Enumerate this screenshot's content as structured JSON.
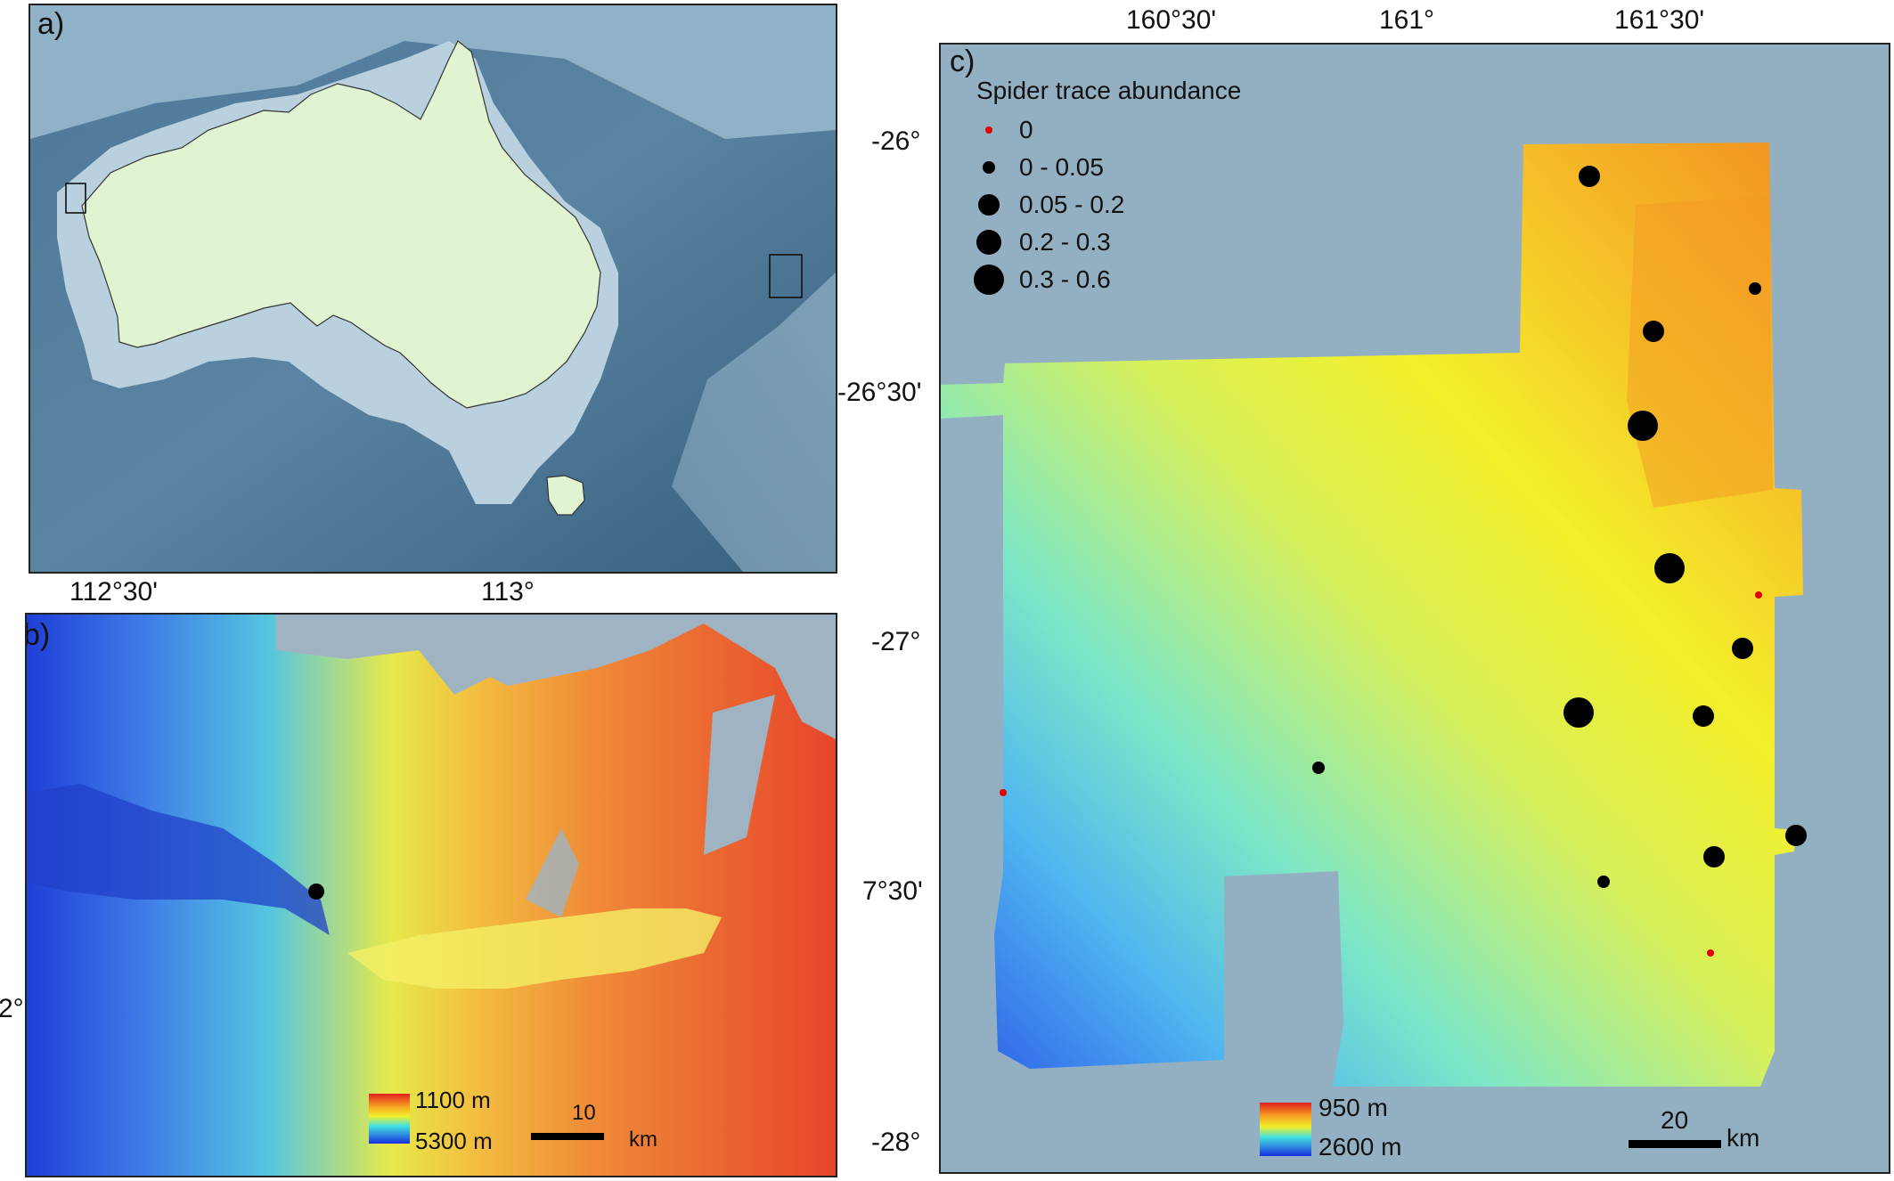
{
  "panel_a": {
    "label": "a)",
    "lon_ticks": [
      "112°30'",
      "113°"
    ]
  },
  "panel_b": {
    "label": "b)",
    "lat_tick_partial": "2°",
    "legend": {
      "top": "1100 m",
      "bottom": "5300 m"
    },
    "scalebar": {
      "value": "10",
      "unit": "km"
    },
    "sites": [
      {
        "abundance_class": "0.05 - 0.2"
      }
    ]
  },
  "panel_c": {
    "label": "c)",
    "lon_ticks": [
      "160°30'",
      "161°",
      "161°30'"
    ],
    "lat_ticks": [
      "-26°",
      "-26°30'",
      "-27°",
      "7°30'",
      "-28°"
    ],
    "legend_title": "Spider trace abundance",
    "legend_items": [
      "0",
      "0 - 0.05",
      "0.05 - 0.2",
      "0.2 - 0.3",
      "0.3 - 0.6"
    ],
    "depth_legend": {
      "top": "950 m",
      "bottom": "2600 m"
    },
    "scalebar": {
      "value": "20",
      "unit": "km"
    },
    "sites": [
      {
        "abundance_class": "0.05 - 0.2"
      },
      {
        "abundance_class": "0 - 0.05"
      },
      {
        "abundance_class": "0.05 - 0.2"
      },
      {
        "abundance_class": "0.3 - 0.6"
      },
      {
        "abundance_class": "0.3 - 0.6"
      },
      {
        "abundance_class": "0.05 - 0.2"
      },
      {
        "abundance_class": "0.3 - 0.6"
      },
      {
        "abundance_class": "0.05 - 0.2"
      },
      {
        "abundance_class": "0.05 - 0.2"
      },
      {
        "abundance_class": "0.05 - 0.2"
      },
      {
        "abundance_class": "0 - 0.05"
      },
      {
        "abundance_class": "0 - 0.05"
      },
      {
        "abundance_class": "0"
      },
      {
        "abundance_class": "0"
      },
      {
        "abundance_class": "0"
      }
    ]
  },
  "colors": {
    "ocean_deep": "#3f6a8a",
    "ocean_shelf": "#9fbfd0",
    "land": "#e0f4d2",
    "panel_c_background": "#93b0c2",
    "dot_zero": "#e00000",
    "dot": "#000000"
  }
}
